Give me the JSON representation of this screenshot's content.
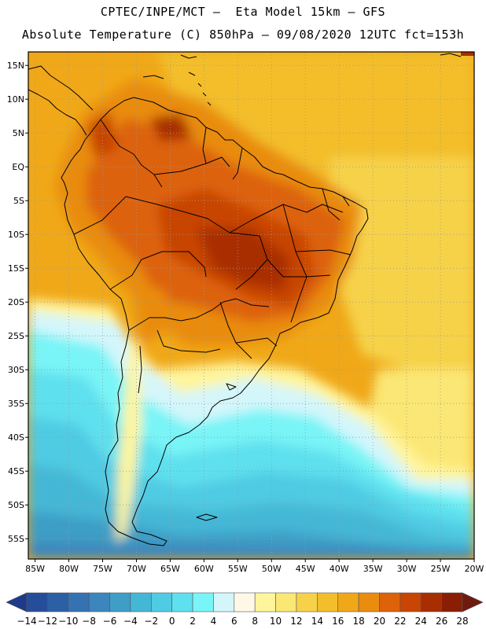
{
  "header": {
    "line1": "CPTEC/INPE/MCT –  Eta Model 15km – GFS",
    "line2": "Absolute Temperature (C) 850hPa – 09/08/2020 12UTC fct=153h"
  },
  "axes": {
    "lat_labels": [
      "15N",
      "10N",
      "5N",
      "EQ",
      "5S",
      "10S",
      "15S",
      "20S",
      "25S",
      "30S",
      "35S",
      "40S",
      "45S",
      "50S",
      "55S"
    ],
    "lat_values": [
      15,
      10,
      5,
      0,
      -5,
      -10,
      -15,
      -20,
      -25,
      -30,
      -35,
      -40,
      -45,
      -50,
      -55
    ],
    "lon_labels": [
      "85W",
      "80W",
      "75W",
      "70W",
      "65W",
      "60W",
      "55W",
      "50W",
      "45W",
      "40W",
      "35W",
      "30W",
      "25W",
      "20W"
    ],
    "lon_values": [
      -85,
      -80,
      -75,
      -70,
      -65,
      -60,
      -55,
      -50,
      -45,
      -40,
      -35,
      -30,
      -25,
      -20
    ],
    "lon_range": [
      -86,
      -20
    ],
    "lat_range": [
      -58,
      17
    ]
  },
  "legend": {
    "labels": [
      "-14",
      "-12",
      "-10",
      "-8",
      "-6",
      "-4",
      "-2",
      "0",
      "2",
      "4",
      "6",
      "8",
      "10",
      "12",
      "14",
      "16",
      "18",
      "20",
      "22",
      "24",
      "26",
      "28"
    ],
    "colors": [
      "#1f3a8a",
      "#254d99",
      "#2c60a6",
      "#3572b3",
      "#3d86bd",
      "#3e9ec6",
      "#45b7d6",
      "#4fcbe3",
      "#5fe0ee",
      "#79f4f7",
      "#d4f6fb",
      "#fff8e6",
      "#fff59c",
      "#fbe774",
      "#f6d24a",
      "#f3be2c",
      "#f0a818",
      "#e98c10",
      "#dd620a",
      "#c84504",
      "#a82e02",
      "#8a1e05",
      "#6e1a10"
    ]
  }
}
